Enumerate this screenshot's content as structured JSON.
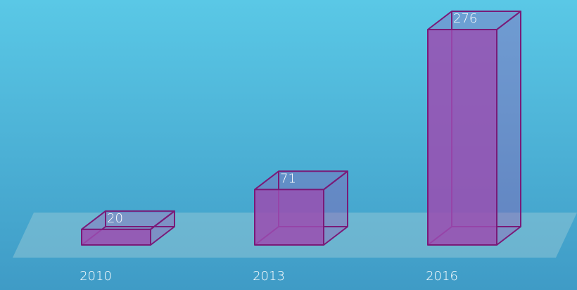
{
  "chart_data": {
    "type": "bar",
    "categories": [
      "2010",
      "2013",
      "2016"
    ],
    "values": [
      20,
      71,
      276
    ],
    "ylim": [
      0,
      276
    ],
    "grid": false,
    "legend": "none"
  },
  "colors": {
    "background_top": "#5ac8e6",
    "background_bottom": "#3f9bc6",
    "bar_fill": "#9b4cb0",
    "bar_edge": "#7a1a78",
    "floor": "#8ec5d6"
  }
}
